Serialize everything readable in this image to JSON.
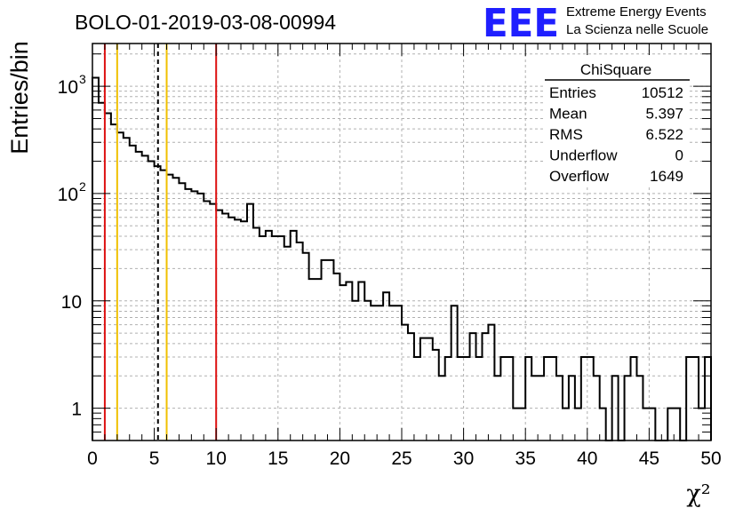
{
  "header": {
    "run_title": "BOLO-01-2019-03-08-00994",
    "logo_text": "EEE",
    "org_line1": "Extreme Energy Events",
    "org_line2": "La Scienza nelle Scuole"
  },
  "stats_box": {
    "title": "ChiSquare",
    "rows": [
      {
        "label": "Entries",
        "value": "10512"
      },
      {
        "label": "Mean",
        "value": "5.397"
      },
      {
        "label": "RMS",
        "value": "6.522"
      },
      {
        "label": "Underflow",
        "value": "0"
      },
      {
        "label": "Overflow",
        "value": "1649"
      }
    ]
  },
  "colors": {
    "histogram": "#000000",
    "red_lines": "#dd1111",
    "yellow_lines": "#f0c000",
    "dashed_line": "#000000",
    "logo_blue": "#1f1fff",
    "grid": "#b0b0b0"
  },
  "chart_data": {
    "type": "bar",
    "title": "BOLO-01-2019-03-08-00994",
    "xlabel": "χ²",
    "ylabel": "Entries/bin",
    "xlim": [
      0,
      50
    ],
    "ylim": [
      0.5,
      2500
    ],
    "yscale": "log",
    "grid": true,
    "legend": "top-right",
    "x_ticks": [
      0,
      5,
      10,
      15,
      20,
      25,
      30,
      35,
      40,
      45,
      50
    ],
    "y_ticks": [
      {
        "value": 1,
        "label": "1"
      },
      {
        "value": 10,
        "label": "10"
      },
      {
        "value": 100,
        "label": "10",
        "exp": "2"
      },
      {
        "value": 1000,
        "label": "10",
        "exp": "3"
      }
    ],
    "bin_width": 0.5,
    "values": [
      1200,
      700,
      560,
      440,
      370,
      330,
      280,
      245,
      225,
      200,
      180,
      165,
      150,
      140,
      125,
      110,
      105,
      100,
      85,
      80,
      70,
      65,
      60,
      57,
      55,
      80,
      48,
      40,
      45,
      40,
      40,
      32,
      45,
      35,
      28,
      16,
      16,
      24,
      24,
      18,
      14,
      15,
      10,
      15,
      10,
      9,
      9,
      12,
      9,
      9,
      6,
      5,
      3,
      4.5,
      4.5,
      3.5,
      2,
      3,
      9,
      3,
      3,
      5,
      3,
      5,
      6,
      2,
      3,
      3,
      1,
      1,
      3,
      2,
      2,
      3,
      3,
      2,
      1,
      2,
      1,
      3,
      3,
      2,
      1,
      0,
      2,
      0,
      2,
      3,
      2,
      1,
      1,
      0,
      0,
      1,
      1,
      0,
      3,
      3,
      1,
      3
    ],
    "vertical_lines": [
      {
        "x": 1.0,
        "color": "red",
        "style": "solid"
      },
      {
        "x": 2.0,
        "color": "yellow",
        "style": "solid"
      },
      {
        "x": 5.3,
        "color": "black",
        "style": "dashed"
      },
      {
        "x": 6.0,
        "color": "yellow",
        "style": "solid"
      },
      {
        "x": 10.0,
        "color": "red",
        "style": "solid"
      }
    ]
  }
}
